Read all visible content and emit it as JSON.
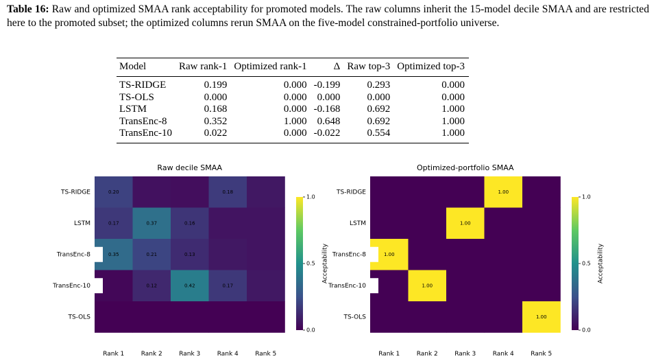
{
  "caption": {
    "label": "Table 16:",
    "text": "Raw and optimized SMAA rank acceptability for promoted models. The raw columns inherit the 15-model decile SMAA and are restricted here to the promoted subset; the optimized columns rerun SMAA on the five-model constrained-portfolio universe."
  },
  "table": {
    "header": [
      "Model",
      "Raw rank-1",
      "Optimized rank-1",
      "Δ",
      "Raw top-3",
      "Optimized top-3"
    ],
    "rows": [
      [
        "TS-RIDGE",
        "0.199",
        "0.000",
        "-0.199",
        "0.293",
        "0.000"
      ],
      [
        "TS-OLS",
        "0.000",
        "0.000",
        "0.000",
        "0.000",
        "0.000"
      ],
      [
        "LSTM",
        "0.168",
        "0.000",
        "-0.168",
        "0.692",
        "1.000"
      ],
      [
        "TransEnc-8",
        "0.352",
        "1.000",
        "0.648",
        "0.692",
        "1.000"
      ],
      [
        "TransEnc-10",
        "0.022",
        "0.000",
        "-0.022",
        "0.554",
        "1.000"
      ]
    ]
  },
  "chart_data": [
    {
      "type": "heatmap",
      "title": "Raw decile SMAA",
      "rows": [
        "TS-RIDGE",
        "LSTM",
        "TransEnc-8",
        "TransEnc-10",
        "TS-OLS"
      ],
      "categories": [
        "Rank 1",
        "Rank 2",
        "Rank 3",
        "Rank 4",
        "Rank 5"
      ],
      "values": [
        [
          0.2,
          0.05,
          0.04,
          0.18,
          0.07
        ],
        [
          0.17,
          0.37,
          0.16,
          0.06,
          0.06
        ],
        [
          0.35,
          0.21,
          0.13,
          0.07,
          0.06
        ],
        [
          0.02,
          0.12,
          0.42,
          0.17,
          0.07
        ],
        [
          0.0,
          0.0,
          0.0,
          0.0,
          0.0
        ]
      ],
      "value_labels": [
        [
          "0.20",
          null,
          null,
          "0.18",
          null
        ],
        [
          "0.17",
          "0.37",
          "0.16",
          null,
          null
        ],
        [
          "0.35",
          "0.21",
          "0.13",
          null,
          null
        ],
        [
          null,
          "0.12",
          "0.42",
          "0.17",
          null
        ],
        [
          null,
          null,
          null,
          null,
          null
        ]
      ],
      "colormap": "viridis",
      "clim": [
        0,
        1
      ],
      "cticks": [
        {
          "value": 0,
          "label": "0.0"
        },
        {
          "value": 0.5,
          "label": "0.5"
        },
        {
          "value": 1,
          "label": "1.0"
        }
      ],
      "colorbar_label": "Acceptability"
    },
    {
      "type": "heatmap",
      "title": "Optimized-portfolio SMAA",
      "rows": [
        "TS-RIDGE",
        "LSTM",
        "TransEnc-8",
        "TransEnc-10",
        "TS-OLS"
      ],
      "categories": [
        "Rank 1",
        "Rank 2",
        "Rank 3",
        "Rank 4",
        "Rank 5"
      ],
      "values": [
        [
          0,
          0,
          0,
          1,
          0
        ],
        [
          0,
          0,
          1,
          0,
          0
        ],
        [
          1,
          0,
          0,
          0,
          0
        ],
        [
          0,
          1,
          0,
          0,
          0
        ],
        [
          0,
          0,
          0,
          0,
          1
        ]
      ],
      "value_labels": [
        [
          null,
          null,
          null,
          "1.00",
          null
        ],
        [
          null,
          null,
          "1.00",
          null,
          null
        ],
        [
          "1.00",
          null,
          null,
          null,
          null
        ],
        [
          null,
          "1.00",
          null,
          null,
          null
        ],
        [
          null,
          null,
          null,
          null,
          "1.00"
        ]
      ],
      "colormap": "viridis",
      "clim": [
        0,
        1
      ],
      "cticks": [
        {
          "value": 0,
          "label": "0.0"
        },
        {
          "value": 0.5,
          "label": "0.5"
        },
        {
          "value": 1,
          "label": "1.0"
        }
      ],
      "colorbar_label": "Acceptability"
    }
  ]
}
